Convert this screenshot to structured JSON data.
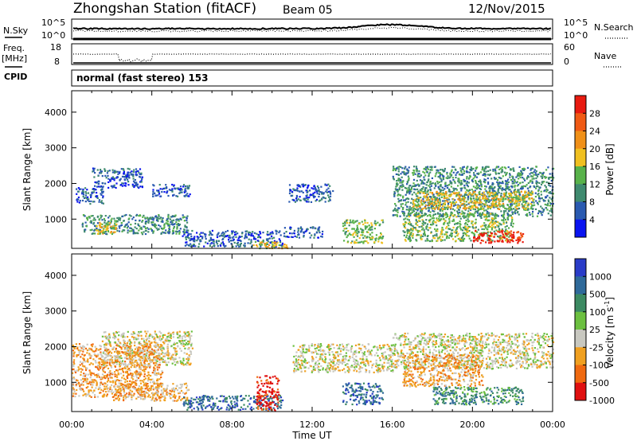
{
  "header": {
    "station": "Zhongshan Station (fitACF)",
    "beam": "Beam 05",
    "date": "12/Nov/2015"
  },
  "top_panels": {
    "nsky": {
      "left_label": "N.Sky",
      "left_ticks": [
        "10^5",
        "10^0"
      ],
      "right_label": "N.Search",
      "right_ticks": [
        "10^5",
        "10^0"
      ]
    },
    "freq": {
      "left_label_1": "Freq.",
      "left_label_2": "[MHz]",
      "left_ticks": [
        "18",
        "8"
      ],
      "right_label": "Nave",
      "right_ticks": [
        "60",
        "0"
      ]
    },
    "cpid": {
      "left_label": "CPID",
      "program": "normal (fast stereo) 153"
    }
  },
  "colors": {
    "power": [
      "#0a14f0",
      "#2a5ab0",
      "#3f8a6f",
      "#58b24a",
      "#f0c020",
      "#f09018",
      "#f05a14",
      "#e81a10"
    ],
    "velocity": [
      "#2a3cc8",
      "#2f6a9a",
      "#3c8a62",
      "#6cc040",
      "#c8c8c0",
      "#f0a020",
      "#f06a10",
      "#e01010"
    ]
  },
  "chart_data": [
    {
      "type": "heatmap",
      "name": "power",
      "ylabel": "Slant Range [km]",
      "yticks": [
        1000,
        2000,
        3000,
        4000
      ],
      "ylim": [
        180,
        4600
      ],
      "xlim": [
        0,
        24
      ],
      "xticks": [
        "00:00",
        "04:00",
        "08:00",
        "12:00",
        "16:00",
        "20:00",
        "00:00"
      ],
      "colorbar": {
        "label": "Power [dB]",
        "ticks": [
          "28",
          "24",
          "20",
          "16",
          "12",
          "8",
          "4"
        ]
      },
      "regions": [
        {
          "t": [
            0.2,
            1.6
          ],
          "r": [
            1450,
            1900
          ],
          "level": 1
        },
        {
          "t": [
            1.0,
            3.5
          ],
          "r": [
            1900,
            2450
          ],
          "level": 1
        },
        {
          "t": [
            4.0,
            5.9
          ],
          "r": [
            1650,
            2000
          ],
          "level": 1
        },
        {
          "t": [
            0.5,
            5.8
          ],
          "r": [
            600,
            1150
          ],
          "level": 2
        },
        {
          "t": [
            1.2,
            2.2
          ],
          "r": [
            600,
            1000
          ],
          "level": 4
        },
        {
          "t": [
            5.5,
            10.5
          ],
          "r": [
            250,
            700
          ],
          "level": 1
        },
        {
          "t": [
            9.0,
            10.8
          ],
          "r": [
            200,
            400
          ],
          "level": 4
        },
        {
          "t": [
            10.5,
            12.5
          ],
          "r": [
            500,
            800
          ],
          "level": 1
        },
        {
          "t": [
            10.8,
            13.0
          ],
          "r": [
            1500,
            2000
          ],
          "level": 1
        },
        {
          "t": [
            13.5,
            15.5
          ],
          "r": [
            350,
            1000
          ],
          "level": 3
        },
        {
          "t": [
            16.0,
            24.0
          ],
          "r": [
            1100,
            2500
          ],
          "level": 2
        },
        {
          "t": [
            17.0,
            23.0
          ],
          "r": [
            1300,
            1800
          ],
          "level": 4
        },
        {
          "t": [
            16.5,
            22.0
          ],
          "r": [
            400,
            1200
          ],
          "level": 3
        },
        {
          "t": [
            20.0,
            22.5
          ],
          "r": [
            350,
            700
          ],
          "level": 7
        }
      ]
    },
    {
      "type": "heatmap",
      "name": "velocity",
      "ylabel": "Slant Range [km]",
      "yticks": [
        1000,
        2000,
        3000,
        4000
      ],
      "ylim": [
        180,
        4600
      ],
      "xlim": [
        0,
        24
      ],
      "xlabel": "Time UT",
      "xticks": [
        "00:00",
        "04:00",
        "08:00",
        "12:00",
        "16:00",
        "20:00",
        "00:00"
      ],
      "colorbar": {
        "label": "Velocity [m s^-1]",
        "ticks": [
          "1000",
          "500",
          "100",
          "25",
          "-25",
          "-100",
          "-500",
          "-1000"
        ]
      },
      "regions": [
        {
          "t": [
            1.5,
            6.0
          ],
          "r": [
            1500,
            2450
          ],
          "level": 4
        },
        {
          "t": [
            0.0,
            4.5
          ],
          "r": [
            600,
            2100
          ],
          "level": 5
        },
        {
          "t": [
            2.0,
            5.8
          ],
          "r": [
            500,
            1000
          ],
          "level": 5
        },
        {
          "t": [
            5.5,
            10.5
          ],
          "r": [
            250,
            650
          ],
          "level": 1
        },
        {
          "t": [
            9.2,
            10.3
          ],
          "r": [
            200,
            1200
          ],
          "level": 7
        },
        {
          "t": [
            11.0,
            16.0
          ],
          "r": [
            1300,
            2100
          ],
          "level": 4
        },
        {
          "t": [
            13.5,
            15.5
          ],
          "r": [
            400,
            1000
          ],
          "level": 1
        },
        {
          "t": [
            16.0,
            24.0
          ],
          "r": [
            1400,
            2400
          ],
          "level": 4
        },
        {
          "t": [
            16.5,
            20.5
          ],
          "r": [
            900,
            1800
          ],
          "level": 5
        },
        {
          "t": [
            18.0,
            22.5
          ],
          "r": [
            400,
            900
          ],
          "level": 2
        }
      ]
    }
  ]
}
